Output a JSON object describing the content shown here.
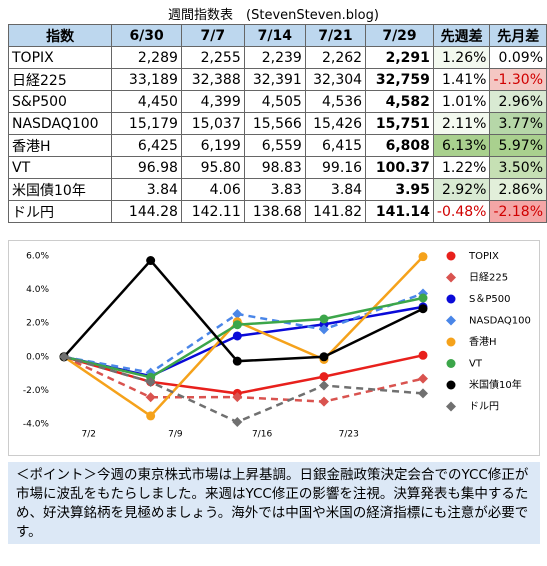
{
  "title": "週間指数表　(StevenSteven.blog)",
  "table": {
    "header": [
      "指数",
      "6/30",
      "7/7",
      "7/14",
      "7/21",
      "7/29",
      "先週差",
      "先月差"
    ],
    "rows": [
      [
        "TOPIX",
        "2,289",
        "2,255",
        "2,239",
        "2,262",
        "2,291",
        "1.26%",
        "0.09%"
      ],
      [
        "日経225",
        "33,189",
        "32,388",
        "32,391",
        "32,304",
        "32,759",
        "1.41%",
        "-1.30%"
      ],
      [
        "S&P500",
        "4,450",
        "4,399",
        "4,505",
        "4,536",
        "4,582",
        "1.01%",
        "2.96%"
      ],
      [
        "NASDAQ100",
        "15,179",
        "15,037",
        "15,566",
        "15,426",
        "15,751",
        "2.11%",
        "3.77%"
      ],
      [
        "香港H",
        "6,425",
        "6,199",
        "6,559",
        "6,415",
        "6,808",
        "6.13%",
        "5.97%"
      ],
      [
        "VT",
        "96.98",
        "95.80",
        "98.83",
        "99.16",
        "100.37",
        "1.22%",
        "3.50%"
      ],
      [
        "米国債10年",
        "3.84",
        "4.06",
        "3.83",
        "3.84",
        "3.95",
        "2.92%",
        "2.86%"
      ],
      [
        "ドル円",
        "144.28",
        "142.11",
        "138.68",
        "141.82",
        "141.14",
        "-0.48%",
        "-2.18%"
      ]
    ]
  },
  "chart_data": {
    "type": "line",
    "x": [
      "6/30",
      "7/7",
      "7/14",
      "7/21",
      "7/29"
    ],
    "xlim": [
      "6/30",
      "7/29"
    ],
    "xticks": [
      "7/2",
      "7/9",
      "7/16",
      "7/23"
    ],
    "ylim": [
      -4,
      6
    ],
    "yticks": [
      {
        "value": 6,
        "label": "6.0%"
      },
      {
        "value": 4,
        "label": "4.0%"
      },
      {
        "value": 2,
        "label": "2.0%"
      },
      {
        "value": 0,
        "label": "0.0%"
      },
      {
        "value": -2,
        "label": "-2.0%"
      },
      {
        "value": -4,
        "label": "-4.0%"
      }
    ],
    "legend": "right",
    "series": [
      {
        "name": "TOPIX",
        "color": "#e8201c",
        "marker": "circle",
        "dashed": false,
        "values": [
          0,
          -1.49,
          -2.18,
          -1.18,
          0.09
        ]
      },
      {
        "name": "日経225",
        "color": "#d9534f",
        "marker": "diamond",
        "dashed": true,
        "values": [
          0,
          -2.41,
          -2.4,
          -2.67,
          -1.3
        ]
      },
      {
        "name": "S＆P500",
        "color": "#0a0ad8",
        "marker": "circle",
        "dashed": false,
        "values": [
          0,
          -1.15,
          1.24,
          1.93,
          2.97
        ]
      },
      {
        "name": "NASDAQ100",
        "color": "#4a86e8",
        "marker": "diamond",
        "dashed": true,
        "values": [
          0,
          -0.94,
          2.55,
          1.63,
          3.77
        ]
      },
      {
        "name": "香港H",
        "color": "#f5a21b",
        "marker": "circle",
        "dashed": false,
        "values": [
          0,
          -3.52,
          2.09,
          -0.16,
          5.96
        ]
      },
      {
        "name": "VT",
        "color": "#3ca64a",
        "marker": "circle",
        "dashed": false,
        "values": [
          0,
          -1.22,
          1.91,
          2.25,
          3.5
        ]
      },
      {
        "name": "米国債10年",
        "color": "#000000",
        "marker": "circle",
        "dashed": false,
        "values": [
          0,
          5.73,
          -0.26,
          0,
          2.86
        ]
      },
      {
        "name": "ドル円",
        "color": "#707070",
        "marker": "diamond",
        "dashed": true,
        "values": [
          0,
          -1.5,
          -3.88,
          -1.71,
          -2.18
        ]
      }
    ]
  },
  "note": "＜ポイント＞今週の東京株式市場は上昇基調。日銀金融政策決定会合でのYCC修正が市場に波乱をもたらしました。来週はYCC修正の影響を注視。決算発表も集中するため、好決算銘柄を見極めましょう。海外では中国や米国の経済指標にも注意が必要です。"
}
